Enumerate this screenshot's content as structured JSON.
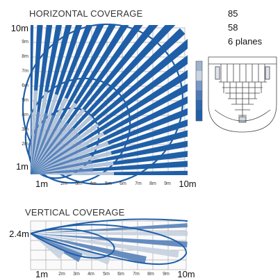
{
  "horizontal": {
    "title": "HORIZONTAL COVERAGE",
    "x_ticks": [
      "1m",
      "2m",
      "3m",
      "4m",
      "5m",
      "6m",
      "7m",
      "8m",
      "9m",
      "10m"
    ],
    "y_ticks": [
      "10m",
      "9m",
      "8m",
      "7m",
      "6m",
      "5m",
      "4m",
      "3m",
      "2m",
      "1m"
    ]
  },
  "vertical": {
    "title": "VERTICAL COVERAGE",
    "height_label": "2.4m",
    "x_ticks": [
      "1m",
      "2m",
      "3m",
      "4m",
      "5m",
      "6m",
      "7m",
      "8m",
      "9m",
      "10m"
    ]
  },
  "specs": [
    "85",
    "58",
    "6 planes"
  ],
  "colors": {
    "beam_dark": "#1f5fa8",
    "beam_light": "#c7d2e0",
    "beam_mid": "#5f87bd",
    "grid": "#9a9a9a",
    "outline": "#1f5fa8"
  }
}
